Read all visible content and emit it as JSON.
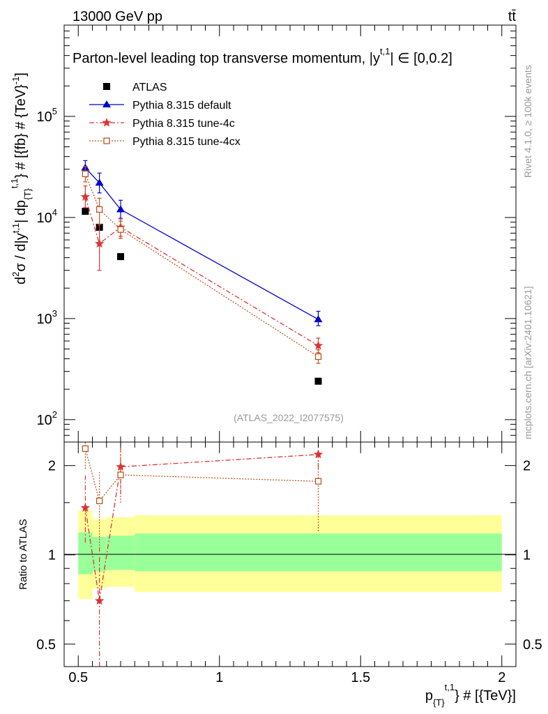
{
  "header": {
    "energy": "13000 GeV pp",
    "process": "tt̄",
    "rivet": "Rivet 4.1.0, ≥ 100k events",
    "mcplots": "mcplots.cern.ch [arXiv:2401.10621]"
  },
  "chart_data": [
    {
      "type": "line",
      "title": "Parton-level leading top transverse momentum, |y",
      "title_sup": "t,1",
      "title_range": "| ∈ [0,0.2]",
      "watermark": "(ATLAS_2022_I2077575)",
      "ylabel": "d²σ / d|y^{t,1}| dp_{T}^{t,1} # [{fb} # {TeV}^{-1}]",
      "ylabel_parts": {
        "main": "d",
        "sup2": "2",
        "sigma": "σ / d|y",
        "sup_t1": "t,1",
        "mid": "| dp",
        "sub_T": "{T}",
        "sup_t1b": "t,1",
        "end": "} # [{fb} # {TeV}",
        "end_sup": "-1",
        "close": "]"
      },
      "yscale": "log",
      "ylim": [
        60,
        800000
      ],
      "xlim": [
        0.45,
        2.05
      ],
      "yticks": [
        {
          "v": 100,
          "m": "10",
          "e": "2"
        },
        {
          "v": 1000,
          "m": "10",
          "e": "3"
        },
        {
          "v": 10000,
          "m": "10",
          "e": "4"
        },
        {
          "v": 100000,
          "m": "10",
          "e": "5"
        }
      ],
      "legend": [
        {
          "label": "ATLAS",
          "color": "#000000"
        },
        {
          "label": "Pythia 8.315 default",
          "color": "#0000cc"
        },
        {
          "label": "Pythia 8.315 tune-4c",
          "color": "#dd3333"
        },
        {
          "label": "Pythia 8.315 tune-4cx",
          "color": "#bb5522"
        }
      ],
      "series": [
        {
          "name": "ATLAS",
          "color": "#000000",
          "marker": "square",
          "x": [
            0.525,
            0.575,
            0.65,
            1.35
          ],
          "y": [
            11500,
            8000,
            4100,
            240
          ]
        },
        {
          "name": "Pythia 8.315 default",
          "color": "#0000cc",
          "marker": "triangle",
          "x": [
            0.525,
            0.575,
            0.65,
            1.35
          ],
          "y": [
            31000,
            22000,
            12000,
            980
          ],
          "err_lo": [
            26500,
            17500,
            9800,
            850
          ],
          "err_hi": [
            36500,
            27500,
            14800,
            1180
          ]
        },
        {
          "name": "Pythia 8.315 tune-4c",
          "color": "#dd3333",
          "marker": "star",
          "x": [
            0.525,
            0.575,
            0.65,
            1.35
          ],
          "y": [
            16000,
            5500,
            8000,
            540
          ],
          "err_lo": [
            12500,
            3000,
            6500,
            460
          ],
          "err_hi": [
            20500,
            8500,
            9700,
            640
          ]
        },
        {
          "name": "Pythia 8.315 tune-4cx",
          "color": "#bb5522",
          "marker": "opensquare",
          "x": [
            0.525,
            0.575,
            0.65,
            1.35
          ],
          "y": [
            27000,
            12000,
            7600,
            420
          ],
          "err_lo": [
            22500,
            8500,
            6200,
            360
          ],
          "err_hi": [
            32000,
            15500,
            9200,
            490
          ]
        }
      ]
    },
    {
      "type": "line",
      "ylabel": "Ratio to ATLAS",
      "xlabel": "p_{T}^{t,1} # [{TeV}]",
      "xlabel_parts": {
        "p": "p",
        "sub": "{T}",
        "sup": "t,1",
        "rest": "} # [{TeV}]"
      },
      "ylim": [
        0.42,
        2.4
      ],
      "xlim": [
        0.45,
        2.05
      ],
      "yticks": [
        {
          "v": 0.5,
          "label": "0.5"
        },
        {
          "v": 1,
          "label": "1"
        },
        {
          "v": 2,
          "label": "2"
        }
      ],
      "xticks": [
        {
          "v": 0.5,
          "label": "0.5"
        },
        {
          "v": 1,
          "label": "1"
        },
        {
          "v": 1.5,
          "label": "1.5"
        },
        {
          "v": 2,
          "label": "2"
        }
      ],
      "bands": [
        {
          "x0": 0.5,
          "x1": 0.55,
          "yellow": [
            0.71,
            1.41
          ],
          "green": [
            0.86,
            1.19
          ]
        },
        {
          "x0": 0.55,
          "x1": 0.6,
          "yellow": [
            0.77,
            1.32
          ],
          "green": [
            0.88,
            1.15
          ]
        },
        {
          "x0": 0.6,
          "x1": 0.7,
          "yellow": [
            0.78,
            1.34
          ],
          "green": [
            0.89,
            1.16
          ]
        },
        {
          "x0": 0.7,
          "x1": 2.0,
          "yellow": [
            0.75,
            1.36
          ],
          "green": [
            0.88,
            1.18
          ]
        }
      ],
      "series": [
        {
          "name": "Pythia 8.315 tune-4c",
          "color": "#dd3333",
          "marker": "star",
          "x": [
            0.525,
            0.575,
            0.65,
            1.35
          ],
          "y": [
            1.44,
            0.7,
            1.98,
            2.18
          ],
          "err_lo": [
            1.1,
            0.4,
            1.6,
            1.95
          ],
          "err_hi": [
            1.85,
            1.05,
            2.4,
            2.4
          ]
        },
        {
          "name": "Pythia 8.315 tune-4cx",
          "color": "#bb5522",
          "marker": "opensquare",
          "x": [
            0.525,
            0.575,
            0.65,
            1.35
          ],
          "y": [
            2.28,
            1.52,
            1.86,
            1.77
          ],
          "err_lo": [
            1.95,
            1.05,
            1.5,
            1.2
          ],
          "err_hi": [
            2.4,
            1.9,
            2.3,
            2.1
          ]
        }
      ]
    }
  ]
}
